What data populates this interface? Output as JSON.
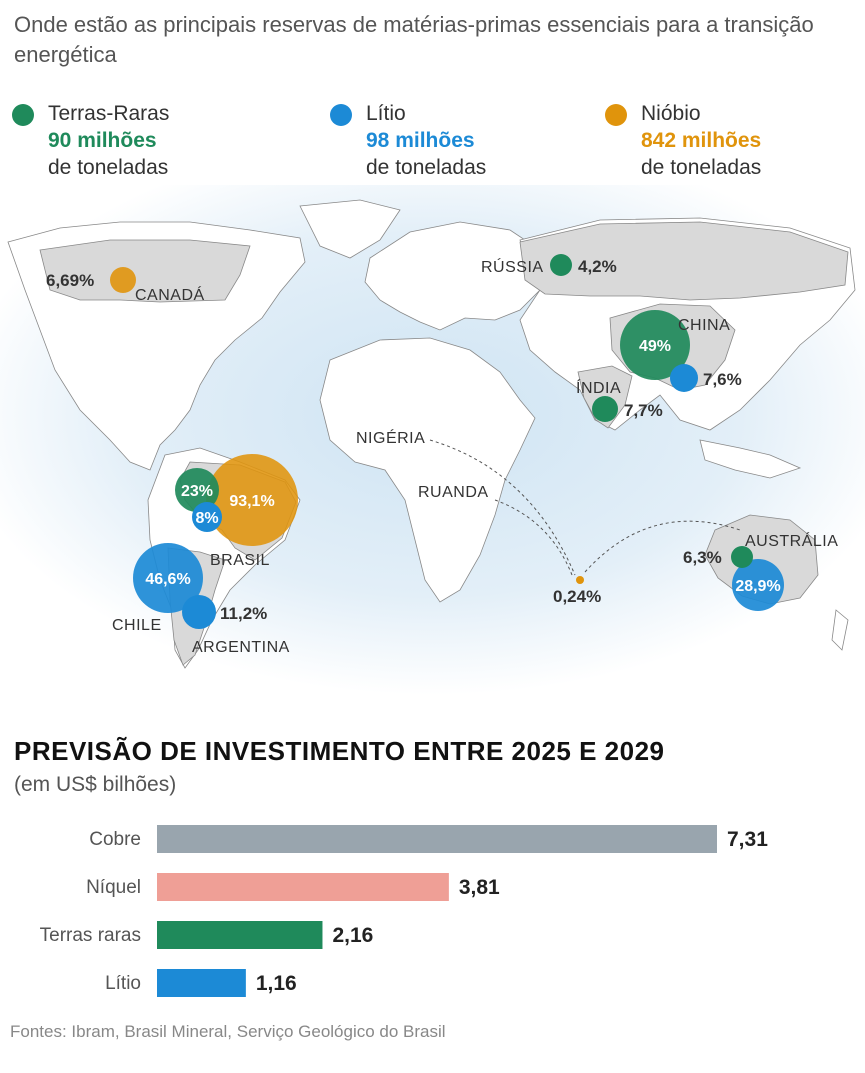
{
  "title": "Onde estão as principais reservas de matérias-primas essenciais para a transição energética",
  "legend": [
    {
      "name": "Terras-Raras",
      "value": "90 milhões",
      "unit": "de toneladas",
      "color": "#1f8a5b"
    },
    {
      "name": "Lítio",
      "value": "98 milhões",
      "unit": "de toneladas",
      "color": "#1c8ad6"
    },
    {
      "name": "Nióbio",
      "value": "842 milhões",
      "unit": "de toneladas",
      "color": "#e0940c"
    }
  ],
  "map": {
    "labels": {
      "russia": "RÚSSIA",
      "china": "CHINA",
      "india": "ÍNDIA",
      "canada": "CANADÁ",
      "nigeria": "NIGÉRIA",
      "ruanda": "RUANDA",
      "brasil": "BRASIL",
      "chile": "CHILE",
      "argentina": "ARGENTINA",
      "australia": "AUSTRÁLIA"
    },
    "values": {
      "russia_terras": "4,2%",
      "china_terras": "49%",
      "china_litio": "7,6%",
      "india_terras": "7,7%",
      "canada_niobio": "6,69%",
      "brasil_terras": "23%",
      "brasil_litio": "8%",
      "brasil_niobio": "93,1%",
      "chile_litio": "46,6%",
      "argentina_litio": "11,2%",
      "australia_terras": "6,3%",
      "australia_litio": "28,9%",
      "africa_niobio": "0,24%"
    }
  },
  "bar_title": "PREVISÃO DE INVESTIMENTO ENTRE 2025 E 2029",
  "bar_subtitle": "(em US$ bilhões)",
  "chart_data": {
    "type": "bar",
    "orientation": "horizontal",
    "categories": [
      "Cobre",
      "Níquel",
      "Terras raras",
      "Lítio"
    ],
    "values": [
      7.31,
      3.81,
      2.16,
      1.16
    ],
    "value_labels": [
      "7,31",
      "3,81",
      "2,16",
      "1,16"
    ],
    "colors": [
      "#99a5ae",
      "#ef9f96",
      "#1f8a5b",
      "#1c8ad6"
    ],
    "xlim": [
      0,
      7.31
    ]
  },
  "source": "Fontes: Ibram, Brasil Mineral, Serviço Geológico do Brasil"
}
